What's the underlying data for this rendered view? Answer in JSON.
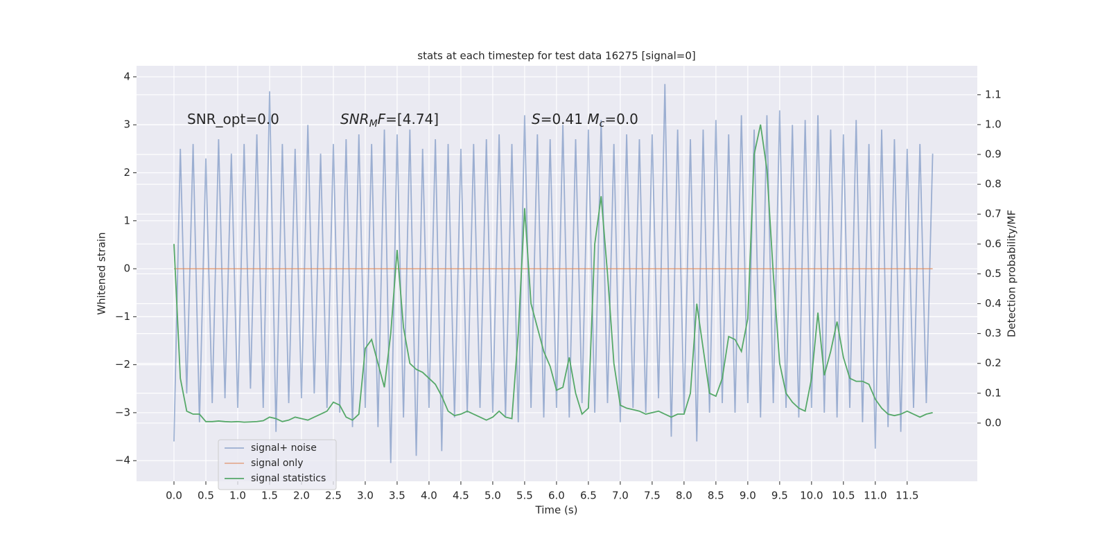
{
  "chart_data": {
    "type": "line",
    "title": "stats at each timestep for test data 16275 [signal=0]",
    "xlabel": "Time (s)",
    "ylabel": "Whitened strain",
    "y2label": "Detection probability/MF",
    "annotations": [
      [
        {
          "text": "SNR_opt=0.0",
          "style": "normal"
        }
      ],
      [
        {
          "text": "SNR",
          "style": "italic"
        },
        {
          "text": "M",
          "style": "italic-sub"
        },
        {
          "text": "F",
          "style": "italic"
        },
        {
          "text": "=[4.74]",
          "style": "normal"
        }
      ],
      [
        {
          "text": "S",
          "style": "italic"
        },
        {
          "text": "=0.41   ",
          "style": "normal"
        },
        {
          "text": "M",
          "style": "italic"
        },
        {
          "text": "c",
          "style": "italic-sub"
        },
        {
          "text": "=0.0",
          "style": "normal"
        }
      ]
    ],
    "x": [
      0.0,
      0.1,
      0.2,
      0.3,
      0.4,
      0.5,
      0.6,
      0.7,
      0.8,
      0.9,
      1.0,
      1.1,
      1.2,
      1.3,
      1.4,
      1.5,
      1.6,
      1.7,
      1.8,
      1.9,
      2.0,
      2.1,
      2.2,
      2.3,
      2.4,
      2.5,
      2.6,
      2.7,
      2.8,
      2.9,
      3.0,
      3.1,
      3.2,
      3.3,
      3.4,
      3.5,
      3.6,
      3.7,
      3.8,
      3.9,
      4.0,
      4.1,
      4.2,
      4.3,
      4.4,
      4.5,
      4.6,
      4.7,
      4.8,
      4.9,
      5.0,
      5.1,
      5.2,
      5.3,
      5.4,
      5.5,
      5.6,
      5.7,
      5.8,
      5.9,
      6.0,
      6.1,
      6.2,
      6.3,
      6.4,
      6.5,
      6.6,
      6.7,
      6.8,
      6.9,
      7.0,
      7.1,
      7.2,
      7.3,
      7.4,
      7.5,
      7.6,
      7.7,
      7.8,
      7.9,
      8.0,
      8.1,
      8.2,
      8.3,
      8.4,
      8.5,
      8.6,
      8.7,
      8.8,
      8.9,
      9.0,
      9.1,
      9.2,
      9.3,
      9.4,
      9.5,
      9.6,
      9.7,
      9.8,
      9.9,
      10.0,
      10.1,
      10.2,
      10.3,
      10.4,
      10.5,
      10.6,
      10.7,
      10.8,
      10.9,
      11.0,
      11.1,
      11.2,
      11.3,
      11.4,
      11.5,
      11.6,
      11.7,
      11.8,
      11.9
    ],
    "series": [
      {
        "name": "signal+ noise",
        "color": "#4c72b0",
        "opacity": 0.5,
        "axis": "y",
        "values": [
          -3.6,
          2.5,
          -2.6,
          2.6,
          -3.2,
          2.3,
          -2.8,
          2.7,
          -2.7,
          2.4,
          -2.9,
          2.6,
          -2.5,
          2.8,
          -2.9,
          3.7,
          -3.4,
          2.6,
          -2.8,
          2.5,
          -2.7,
          3.0,
          -2.6,
          2.4,
          -2.9,
          2.6,
          -3.0,
          2.7,
          -3.3,
          2.8,
          -2.9,
          2.6,
          -3.3,
          2.9,
          -4.05,
          2.8,
          -3.1,
          2.9,
          -3.9,
          2.5,
          -2.9,
          2.7,
          -3.8,
          2.6,
          -3.1,
          2.5,
          -3.0,
          2.6,
          -2.9,
          2.7,
          -3.0,
          2.8,
          -3.1,
          2.6,
          -3.2,
          3.2,
          -2.9,
          2.8,
          -3.1,
          2.7,
          -2.9,
          3.0,
          -3.1,
          2.7,
          -2.8,
          2.9,
          -3.0,
          3.1,
          -2.8,
          2.6,
          -3.2,
          2.8,
          -2.9,
          2.7,
          -3.0,
          2.8,
          -2.7,
          3.85,
          -3.5,
          2.9,
          -3.0,
          2.7,
          -3.6,
          2.9,
          -3.0,
          3.1,
          -2.8,
          2.8,
          -3.0,
          3.2,
          -2.8,
          2.9,
          -3.1,
          3.2,
          -2.8,
          3.3,
          -2.9,
          3.0,
          -3.1,
          3.1,
          -2.9,
          3.2,
          -3.0,
          2.9,
          -3.1,
          2.8,
          -2.9,
          3.1,
          -3.2,
          2.6,
          -3.75,
          2.9,
          -3.3,
          2.7,
          -3.4,
          2.5,
          -2.9,
          2.6,
          -2.8,
          2.4
        ]
      },
      {
        "name": "signal only",
        "color": "#dd8452",
        "opacity": 0.6,
        "axis": "y",
        "values": [
          0,
          0,
          0,
          0,
          0,
          0,
          0,
          0,
          0,
          0,
          0,
          0,
          0,
          0,
          0,
          0,
          0,
          0,
          0,
          0,
          0,
          0,
          0,
          0,
          0,
          0,
          0,
          0,
          0,
          0,
          0,
          0,
          0,
          0,
          0,
          0,
          0,
          0,
          0,
          0,
          0,
          0,
          0,
          0,
          0,
          0,
          0,
          0,
          0,
          0,
          0,
          0,
          0,
          0,
          0,
          0,
          0,
          0,
          0,
          0,
          0,
          0,
          0,
          0,
          0,
          0,
          0,
          0,
          0,
          0,
          0,
          0,
          0,
          0,
          0,
          0,
          0,
          0,
          0,
          0,
          0,
          0,
          0,
          0,
          0,
          0,
          0,
          0,
          0,
          0,
          0,
          0,
          0,
          0,
          0,
          0,
          0,
          0,
          0,
          0,
          0,
          0,
          0,
          0,
          0,
          0,
          0,
          0,
          0,
          0,
          0,
          0,
          0,
          0,
          0,
          0,
          0,
          0,
          0,
          0
        ]
      },
      {
        "name": "signal statistics",
        "color": "#55a868",
        "opacity": 1,
        "axis": "y2",
        "values": [
          0.6,
          0.15,
          0.04,
          0.03,
          0.03,
          0.005,
          0.005,
          0.007,
          0.005,
          0.004,
          0.005,
          0.003,
          0.004,
          0.005,
          0.008,
          0.02,
          0.015,
          0.005,
          0.01,
          0.02,
          0.015,
          0.01,
          0.02,
          0.03,
          0.04,
          0.07,
          0.06,
          0.02,
          0.01,
          0.03,
          0.25,
          0.28,
          0.2,
          0.12,
          0.3,
          0.58,
          0.32,
          0.2,
          0.18,
          0.17,
          0.15,
          0.13,
          0.09,
          0.04,
          0.025,
          0.03,
          0.04,
          0.03,
          0.02,
          0.01,
          0.02,
          0.04,
          0.02,
          0.015,
          0.3,
          0.72,
          0.4,
          0.32,
          0.24,
          0.19,
          0.11,
          0.12,
          0.22,
          0.1,
          0.03,
          0.05,
          0.6,
          0.76,
          0.5,
          0.2,
          0.06,
          0.05,
          0.045,
          0.04,
          0.03,
          0.035,
          0.04,
          0.03,
          0.02,
          0.03,
          0.03,
          0.1,
          0.4,
          0.25,
          0.1,
          0.09,
          0.15,
          0.29,
          0.28,
          0.24,
          0.35,
          0.9,
          1.0,
          0.85,
          0.5,
          0.2,
          0.1,
          0.07,
          0.05,
          0.04,
          0.15,
          0.37,
          0.16,
          0.24,
          0.34,
          0.22,
          0.15,
          0.14,
          0.14,
          0.13,
          0.08,
          0.05,
          0.03,
          0.025,
          0.03,
          0.04,
          0.03,
          0.02,
          0.03,
          0.035
        ]
      }
    ],
    "xlim": [
      -0.587,
      12.6
    ],
    "ylim": [
      -4.43,
      4.23
    ],
    "y2lim": [
      -0.195,
      1.197
    ],
    "xticks": [
      {
        "value": 0,
        "label": "0.0"
      },
      0.5,
      {
        "value": 1,
        "label": "1.0"
      },
      1.5,
      {
        "value": 2,
        "label": "2.0"
      },
      2.5,
      {
        "value": 3,
        "label": "3.0"
      },
      3.5,
      {
        "value": 4,
        "label": "4.0"
      },
      4.5,
      {
        "value": 5,
        "label": "5.0"
      },
      5.5,
      {
        "value": 6,
        "label": "6.0"
      },
      6.5,
      {
        "value": 7,
        "label": "7.0"
      },
      7.5,
      {
        "value": 8,
        "label": "8.0"
      },
      8.5,
      {
        "value": 9,
        "label": "9.0"
      },
      9.5,
      {
        "value": 10,
        "label": "10.0"
      },
      10.5,
      {
        "value": 11,
        "label": "11.0"
      },
      11.5
    ],
    "yticks": [
      {
        "value": -4,
        "label": "−4"
      },
      {
        "value": -3,
        "label": "−3"
      },
      {
        "value": -2,
        "label": "−2"
      },
      {
        "value": -1,
        "label": "−1"
      },
      0,
      1,
      2,
      3,
      4
    ],
    "y2ticks": [
      {
        "value": 0,
        "label": "0.0"
      },
      0.1,
      0.2,
      0.3,
      0.4,
      0.5,
      0.6,
      0.7,
      0.8,
      0.9,
      {
        "value": 1,
        "label": "1.0"
      },
      1.1
    ],
    "grid": true,
    "legend": "lower left"
  }
}
